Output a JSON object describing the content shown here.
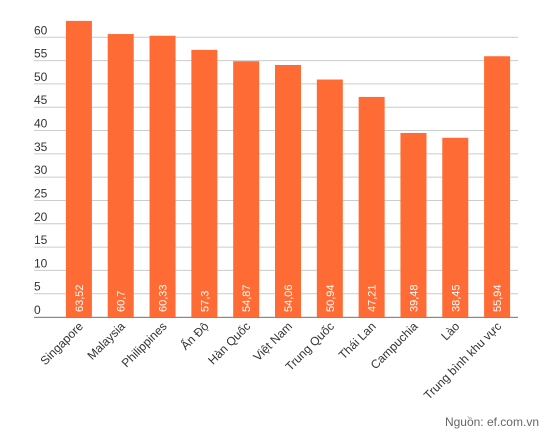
{
  "chart_data": {
    "type": "bar",
    "categories": [
      "Singapore",
      "Malaysia",
      "Philippines",
      "Ấn Độ",
      "Hàn Quốc",
      "Việt Nam",
      "Trung Quốc",
      "Thái Lan",
      "Campuchia",
      "Lào",
      "Trung bình khu vực"
    ],
    "values": [
      63.52,
      60.7,
      60.33,
      57.3,
      54.87,
      54.06,
      50.94,
      47.21,
      39.48,
      38.45,
      55.94
    ],
    "value_labels": [
      "63,52",
      "60,7",
      "60,33",
      "57,3",
      "54,87",
      "54,06",
      "50,94",
      "47,21",
      "39,48",
      "38,45",
      "55,94"
    ],
    "y_ticks": [
      0,
      5,
      10,
      15,
      20,
      25,
      30,
      35,
      40,
      45,
      50,
      55,
      60
    ],
    "ylim": [
      0,
      65
    ],
    "grid": true,
    "bar_color": "#FF6B35"
  },
  "source": "Nguồn: ef.com.vn"
}
